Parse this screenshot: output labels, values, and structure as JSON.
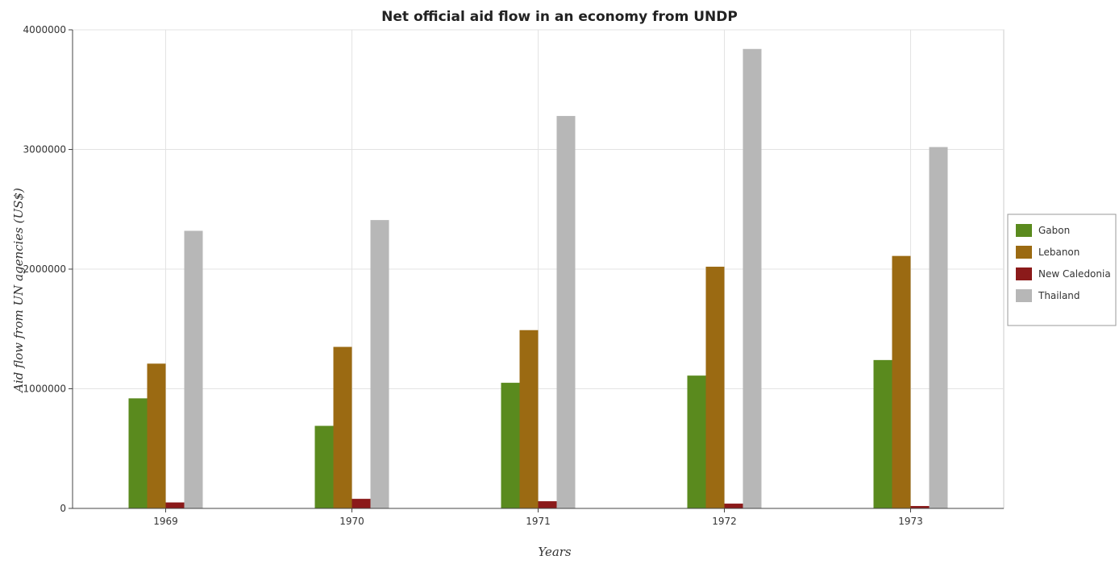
{
  "chart_data": {
    "type": "bar",
    "title": "Net official aid flow in an economy from UNDP",
    "xlabel": "Years",
    "ylabel": "Aid flow from UN agencies (US$)",
    "categories": [
      "1969",
      "1970",
      "1971",
      "1972",
      "1973"
    ],
    "ylim": [
      0,
      4000000
    ],
    "yticks": [
      0,
      1000000,
      2000000,
      3000000,
      4000000
    ],
    "ytick_labels": [
      "0",
      "1000000",
      "2000000",
      "3000000",
      "4000000"
    ],
    "grid": true,
    "legend_position": "right",
    "series": [
      {
        "name": "Gabon",
        "color": "#5a8a1e",
        "values": [
          920000,
          690000,
          1050000,
          1110000,
          1240000
        ]
      },
      {
        "name": "Lebanon",
        "color": "#9b6a12",
        "values": [
          1210000,
          1350000,
          1490000,
          2020000,
          2110000
        ]
      },
      {
        "name": "New Caledonia",
        "color": "#8b1a1a",
        "values": [
          50000,
          80000,
          60000,
          40000,
          20000
        ]
      },
      {
        "name": "Thailand",
        "color": "#b7b7b7",
        "values": [
          2320000,
          2410000,
          3280000,
          3840000,
          3020000
        ]
      }
    ]
  }
}
